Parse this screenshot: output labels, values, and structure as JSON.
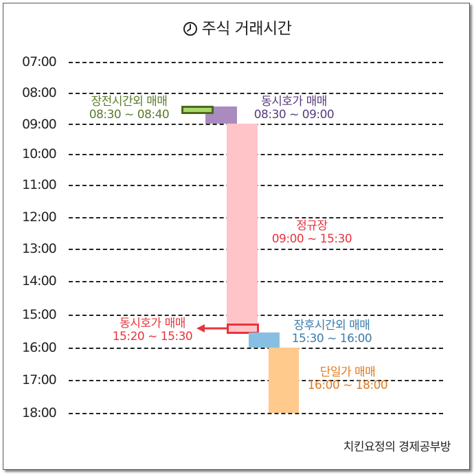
{
  "title": "주식 거래시간",
  "y_axis_labels": [
    "07:00",
    "08:00",
    "09:00",
    "10:00",
    "11:00",
    "12:00",
    "13:00",
    "14:00",
    "15:00",
    "16:00",
    "17:00",
    "18:00"
  ],
  "sessions": [
    {
      "name": "장전시간외 매매",
      "time": "08:30 ~ 08:40",
      "start": "08:30",
      "end": "08:40",
      "color": "#5b7a2b"
    },
    {
      "name": "동시호가 매매",
      "time": "08:30 ~ 09:00",
      "start": "08:30",
      "end": "09:00",
      "color": "#5a3a7c"
    },
    {
      "name": "정규장",
      "time": "09:00 ~ 15:30",
      "start": "09:00",
      "end": "15:30",
      "color": "#e8333c"
    },
    {
      "name": "동시호가 매매",
      "time": "15:20 ~ 15:30",
      "start": "15:20",
      "end": "15:30",
      "color": "#e8333c"
    },
    {
      "name": "장후시간외 매매",
      "time": "15:30 ~ 16:00",
      "start": "15:30",
      "end": "16:00",
      "color": "#3a7caa"
    },
    {
      "name": "단일가 매매",
      "time": "16:00 ~ 18:00",
      "start": "16:00",
      "end": "18:00",
      "color": "#e07a1c"
    }
  ],
  "footer": "치킨요정의 경제공부방"
}
